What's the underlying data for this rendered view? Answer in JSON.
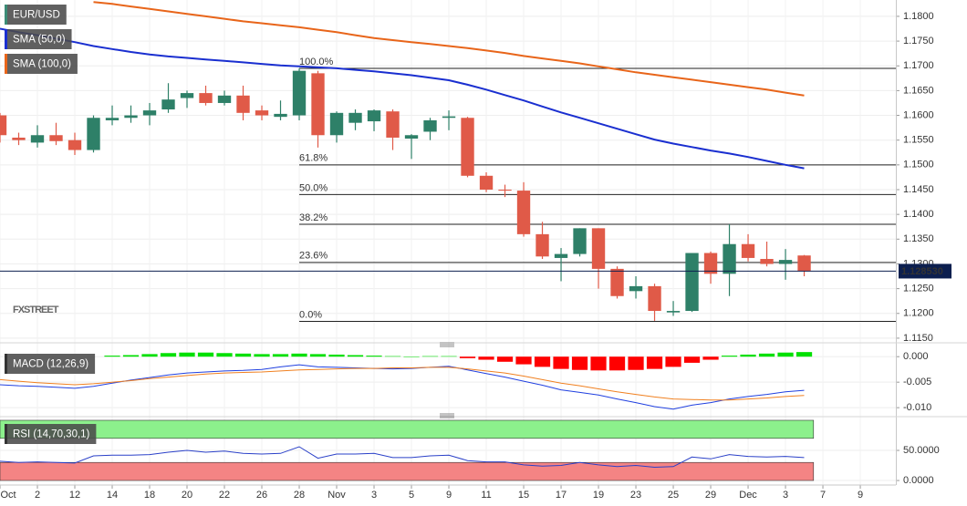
{
  "chart_data": [
    {
      "type": "candlestick",
      "title": "EUR/USD",
      "title_color": "#3b8c76",
      "watermark": "FXSTREET",
      "up_color": "#2e8068",
      "down_color": "#e05a48",
      "grid": true,
      "xlim": [
        0,
        47.9
      ],
      "ylim": [
        1.1148,
        1.1833
      ],
      "yticks": [
        {
          "value": 1.115,
          "label": "1.1150"
        },
        {
          "value": 1.12,
          "label": "1.1200"
        },
        {
          "value": 1.125,
          "label": "1.1250"
        },
        {
          "value": 1.13,
          "label": "1.1300"
        },
        {
          "value": 1.135,
          "label": "1.1350"
        },
        {
          "value": 1.14,
          "label": "1.1400"
        },
        {
          "value": 1.145,
          "label": "1.1450"
        },
        {
          "value": 1.15,
          "label": "1.1500"
        },
        {
          "value": 1.155,
          "label": "1.1550"
        },
        {
          "value": 1.16,
          "label": "1.1600"
        },
        {
          "value": 1.165,
          "label": "1.1650"
        },
        {
          "value": 1.17,
          "label": "1.1700"
        },
        {
          "value": 1.175,
          "label": "1.1750"
        },
        {
          "value": 1.18,
          "label": "1.1800"
        }
      ],
      "open": [
        1.16,
        1.1555,
        1.1545,
        1.156,
        1.155,
        1.153,
        1.159,
        1.1595,
        1.16,
        1.1612,
        1.1635,
        1.1645,
        1.1625,
        1.164,
        1.161,
        1.1597,
        1.16,
        1.1685,
        1.156,
        1.1585,
        1.1588,
        1.1608,
        1.1553,
        1.1567,
        1.1595,
        1.1595,
        1.1478,
        1.145,
        1.1448,
        1.136,
        1.1312,
        1.132,
        1.1372,
        1.129,
        1.1245,
        1.1255,
        1.1202,
        1.1205,
        1.1322,
        1.128,
        1.134,
        1.131,
        1.13,
        1.1317
      ],
      "high": [
        1.1605,
        1.1565,
        1.158,
        1.1585,
        1.1565,
        1.16,
        1.162,
        1.162,
        1.1625,
        1.1665,
        1.165,
        1.166,
        1.165,
        1.166,
        1.162,
        1.163,
        1.1695,
        1.169,
        1.1608,
        1.1612,
        1.1612,
        1.1612,
        1.1562,
        1.1595,
        1.161,
        1.1597,
        1.1485,
        1.146,
        1.1465,
        1.1385,
        1.1332,
        1.1372,
        1.1372,
        1.1295,
        1.1275,
        1.126,
        1.1225,
        1.1322,
        1.1325,
        1.138,
        1.136,
        1.1345,
        1.133,
        1.1318
      ],
      "low": [
        1.1545,
        1.154,
        1.1535,
        1.154,
        1.152,
        1.1525,
        1.158,
        1.1585,
        1.158,
        1.1605,
        1.1615,
        1.162,
        1.162,
        1.159,
        1.159,
        1.159,
        1.159,
        1.1535,
        1.1545,
        1.157,
        1.1568,
        1.153,
        1.1512,
        1.155,
        1.157,
        1.1475,
        1.1445,
        1.1435,
        1.1355,
        1.131,
        1.1265,
        1.1315,
        1.125,
        1.123,
        1.123,
        1.1185,
        1.1195,
        1.1203,
        1.126,
        1.1235,
        1.1305,
        1.1295,
        1.1268,
        1.1275
      ],
      "close": [
        1.156,
        1.155,
        1.156,
        1.1548,
        1.153,
        1.1595,
        1.1595,
        1.16,
        1.161,
        1.1632,
        1.1645,
        1.1625,
        1.164,
        1.1605,
        1.16,
        1.1603,
        1.169,
        1.156,
        1.1605,
        1.1605,
        1.161,
        1.1555,
        1.156,
        1.159,
        1.1598,
        1.1478,
        1.145,
        1.1448,
        1.136,
        1.1315,
        1.132,
        1.1372,
        1.129,
        1.1235,
        1.1255,
        1.1205,
        1.1205,
        1.1322,
        1.128,
        1.134,
        1.1312,
        1.13,
        1.1308,
        1.1285
      ],
      "series": [
        {
          "name": "SMA (50,0)",
          "color": "#1a2fd0",
          "values": [
            1.1775,
            1.1768,
            1.1762,
            1.1755,
            1.1748,
            1.174,
            1.1734,
            1.1728,
            1.1723,
            1.1719,
            1.1716,
            1.1713,
            1.171,
            1.1707,
            1.1704,
            1.1701,
            1.1699,
            1.1697,
            1.1695,
            1.1692,
            1.1689,
            1.1685,
            1.1681,
            1.1676,
            1.1671,
            1.1662,
            1.1652,
            1.1641,
            1.163,
            1.1618,
            1.1606,
            1.1595,
            1.1584,
            1.1573,
            1.1562,
            1.1551,
            1.1543,
            1.1536,
            1.1529,
            1.1523,
            1.1516,
            1.1508,
            1.15,
            1.1493
          ]
        },
        {
          "name": "SMA (100,0)",
          "color": "#e8651a",
          "values": [
            null,
            null,
            null,
            null,
            null,
            1.1829,
            1.1825,
            1.182,
            1.1815,
            1.181,
            1.1805,
            1.18,
            1.1795,
            1.179,
            1.1786,
            1.1782,
            1.1778,
            1.1773,
            1.1768,
            1.1762,
            1.1756,
            1.1752,
            1.1748,
            1.1744,
            1.174,
            1.1736,
            1.1731,
            1.1726,
            1.172,
            1.1715,
            1.171,
            1.1705,
            1.1699,
            1.1693,
            1.1687,
            1.1682,
            1.1677,
            1.1672,
            1.1667,
            1.1662,
            1.1657,
            1.1652,
            1.1646,
            1.164
          ]
        }
      ],
      "levels": [
        {
          "label": "100.0%",
          "value": 1.1695
        },
        {
          "label": "61.8%",
          "value": 1.15
        },
        {
          "label": "50.0%",
          "value": 1.144
        },
        {
          "label": "38.2%",
          "value": 1.138
        },
        {
          "label": "23.6%",
          "value": 1.1303
        },
        {
          "label": "0.0%",
          "value": 1.1184
        }
      ],
      "last_price": {
        "value": 1.12853,
        "label": "1.128530"
      }
    },
    {
      "type": "macd",
      "title": "MACD (12,26,9)",
      "xlim": [
        0,
        47.9
      ],
      "ylim": [
        -0.0114,
        0.002
      ],
      "yticks": [
        {
          "value": 0,
          "label": "0.000"
        },
        {
          "value": -0.005,
          "label": "-0.005"
        },
        {
          "value": -0.01,
          "label": "-0.010"
        }
      ],
      "histogram": {
        "up_color": "#00e000",
        "down_color": "#ff0000",
        "values": [
          null,
          null,
          null,
          null,
          null,
          null,
          0.0002,
          0.0003,
          0.0005,
          0.0007,
          0.0008,
          0.0008,
          0.0007,
          0.0006,
          0.0005,
          0.0005,
          0.0006,
          0.0005,
          0.0004,
          0.0003,
          0.0002,
          0.0001,
          0,
          0.0001,
          0.0001,
          -0.0003,
          -0.0006,
          -0.001,
          -0.0015,
          -0.002,
          -0.0024,
          -0.0026,
          -0.0027,
          -0.0027,
          -0.0026,
          -0.0024,
          -0.002,
          -0.0012,
          -0.0006,
          0.0002,
          0.0004,
          0.0006,
          0.0008,
          0.0009
        ]
      },
      "series": [
        {
          "color": "#2040e0",
          "values": [
            -0.0055,
            -0.0057,
            -0.0058,
            -0.006,
            -0.0062,
            -0.0058,
            -0.0052,
            -0.0046,
            -0.0041,
            -0.0036,
            -0.0032,
            -0.003,
            -0.0028,
            -0.0027,
            -0.0025,
            -0.002,
            -0.0016,
            -0.002,
            -0.0021,
            -0.0022,
            -0.0023,
            -0.0024,
            -0.0023,
            -0.0021,
            -0.0019,
            -0.0026,
            -0.0033,
            -0.004,
            -0.0048,
            -0.0056,
            -0.0065,
            -0.007,
            -0.0075,
            -0.0083,
            -0.009,
            -0.0098,
            -0.0103,
            -0.0095,
            -0.009,
            -0.0083,
            -0.0078,
            -0.0074,
            -0.0069,
            -0.0066
          ]
        },
        {
          "color": "#f08020",
          "values": [
            -0.0045,
            -0.0048,
            -0.0051,
            -0.0053,
            -0.0055,
            -0.0053,
            -0.005,
            -0.0047,
            -0.0043,
            -0.004,
            -0.0037,
            -0.0034,
            -0.0032,
            -0.0031,
            -0.003,
            -0.0028,
            -0.0026,
            -0.0025,
            -0.0024,
            -0.0023,
            -0.0023,
            -0.0022,
            -0.0022,
            -0.0021,
            -0.0021,
            -0.0024,
            -0.0028,
            -0.0032,
            -0.0038,
            -0.0045,
            -0.0052,
            -0.0057,
            -0.0063,
            -0.0069,
            -0.0074,
            -0.0079,
            -0.0083,
            -0.0084,
            -0.0085,
            -0.0085,
            -0.0083,
            -0.0081,
            -0.0078,
            -0.0076
          ]
        }
      ]
    },
    {
      "type": "rsi",
      "title": "RSI (14,70,30,1)",
      "xlim": [
        0,
        47.9
      ],
      "ylim": [
        -4.5,
        101.5
      ],
      "yticks": [
        {
          "value": 0,
          "label": "0.0000"
        },
        {
          "value": 50,
          "label": "50.0000"
        }
      ],
      "bands": [
        {
          "from": 70,
          "to": 100,
          "color": "#8cf08c"
        },
        {
          "from": 0,
          "to": 30,
          "color": "#f48484"
        }
      ],
      "series": [
        {
          "color": "#2a40c8",
          "values": [
            32,
            30,
            31,
            30,
            29,
            41,
            42,
            42,
            43,
            47,
            50,
            47,
            49,
            45,
            44,
            45,
            56,
            37,
            44,
            44,
            45,
            38,
            38,
            41,
            42,
            33,
            31,
            31,
            26,
            24,
            25,
            30,
            26,
            23,
            25,
            22,
            23,
            39,
            36,
            43,
            40,
            39,
            40,
            38
          ]
        }
      ],
      "xticks": [
        {
          "value": 0,
          "label": "Oct"
        },
        2,
        {
          "value": 4,
          "label": "12"
        },
        {
          "value": 6,
          "label": "14"
        },
        {
          "value": 8,
          "label": "18"
        },
        {
          "value": 10,
          "label": "20"
        },
        {
          "value": 12,
          "label": "22"
        },
        {
          "value": 14,
          "label": "26"
        },
        {
          "value": 16,
          "label": "28"
        },
        {
          "value": 18,
          "label": "Nov"
        },
        {
          "value": 20,
          "label": "3"
        },
        {
          "value": 22,
          "label": "5"
        },
        {
          "value": 24,
          "label": "9"
        },
        {
          "value": 26,
          "label": "11"
        },
        {
          "value": 28,
          "label": "15"
        },
        {
          "value": 30,
          "label": "17"
        },
        {
          "value": 32,
          "label": "19"
        },
        {
          "value": 34,
          "label": "23"
        },
        {
          "value": 36,
          "label": "25"
        },
        {
          "value": 38,
          "label": "29"
        },
        {
          "value": 40,
          "label": "Dec"
        },
        {
          "value": 42,
          "label": "3"
        },
        {
          "value": 44,
          "label": "7"
        },
        {
          "value": 46,
          "label": "9"
        }
      ]
    }
  ]
}
